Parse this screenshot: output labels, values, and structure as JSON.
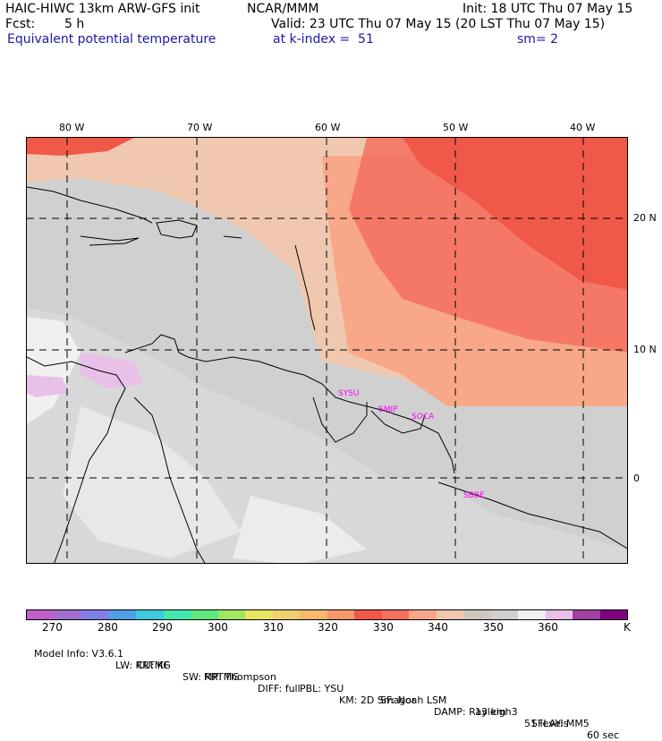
{
  "header": {
    "model": "HAIC-HIWC 13km ARW-GFS init",
    "org": "NCAR/MMM",
    "init": "Init: 18 UTC Thu 07 May 15",
    "fcst_label": "Fcst:",
    "fcst_value": "5 h",
    "valid": "Valid: 23 UTC Thu 07 May 15 (20 LST Thu 07 May 15)",
    "field": "Equivalent potential temperature",
    "level": "at k-index =  51",
    "smooth": "sm= 2"
  },
  "map": {
    "lon_labels": [
      "80 W",
      "70 W",
      "60 W",
      "50 W",
      "40 W"
    ],
    "lat_labels": [
      "20 N",
      "10 N",
      "0"
    ],
    "stations": [
      "SYSU",
      "SMJP",
      "SOCA",
      "SBBE"
    ],
    "station_color": "#ff00ff"
  },
  "colorbar": {
    "colors": [
      "#c060c8",
      "#a070d0",
      "#8080e8",
      "#50a0e8",
      "#40c8e0",
      "#40e8b0",
      "#60e880",
      "#a0e860",
      "#e8e860",
      "#f0d070",
      "#f8b870",
      "#f89868",
      "#f05848",
      "#f47060",
      "#f8a888",
      "#f0c8b0",
      "#d0c8c0",
      "#d0d0d0",
      "#f0f0f0",
      "#e8c0e8",
      "#a040a0",
      "#800080"
    ],
    "labels": [
      "270",
      "280",
      "290",
      "300",
      "310",
      "320",
      "330",
      "340",
      "350",
      "360",
      "K"
    ]
  },
  "footer": {
    "line1": [
      "Model Info: V3.6.1",
      "CU: KF",
      "MP: Thompson",
      "PBL: YSU",
      "SF: Noah LSM",
      "13 km",
      "51 levels",
      "60 sec"
    ],
    "line2": [
      "LW: RRTMG",
      "SW: RRTMG",
      "DIFF: full",
      "KM: 2D Smagor",
      "DAMP: Rayleigh3",
      "SFLAY: MM5"
    ]
  }
}
